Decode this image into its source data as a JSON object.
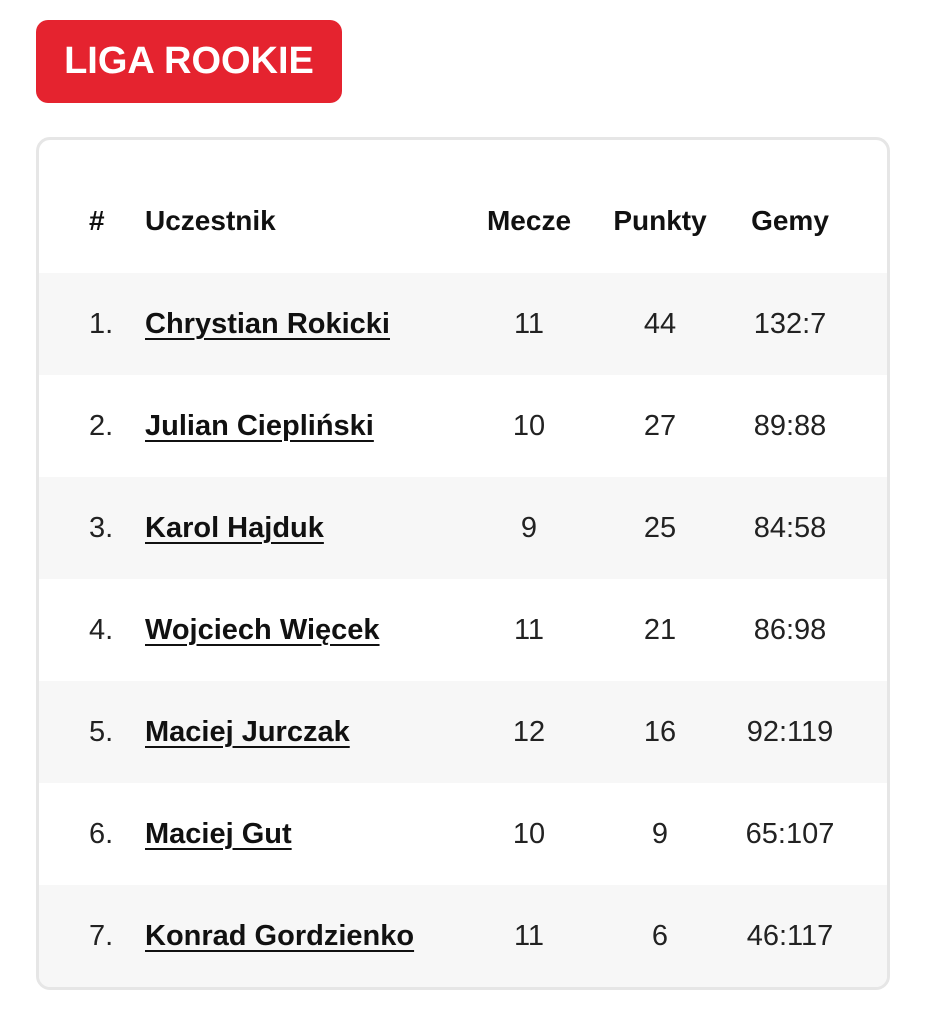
{
  "league": {
    "title": "LIGA ROOKIE",
    "accent_color": "#e5232f"
  },
  "table": {
    "headers": {
      "rank": "#",
      "player": "Uczestnik",
      "matches": "Mecze",
      "points": "Punkty",
      "games": "Gemy"
    },
    "rows": [
      {
        "rank": "1.",
        "player": "Chrystian Rokicki",
        "matches": "11",
        "points": "44",
        "games": "132:7"
      },
      {
        "rank": "2.",
        "player": "Julian Ciepliński",
        "matches": "10",
        "points": "27",
        "games": "89:88"
      },
      {
        "rank": "3.",
        "player": "Karol Hajduk",
        "matches": "9",
        "points": "25",
        "games": "84:58"
      },
      {
        "rank": "4.",
        "player": "Wojciech Więcek",
        "matches": "11",
        "points": "21",
        "games": "86:98"
      },
      {
        "rank": "5.",
        "player": "Maciej Jurczak",
        "matches": "12",
        "points": "16",
        "games": "92:119"
      },
      {
        "rank": "6.",
        "player": "Maciej Gut",
        "matches": "10",
        "points": "9",
        "games": "65:107"
      },
      {
        "rank": "7.",
        "player": "Konrad Gordzienko",
        "matches": "11",
        "points": "6",
        "games": "46:117"
      }
    ],
    "stripe_color": "#f7f7f7"
  }
}
